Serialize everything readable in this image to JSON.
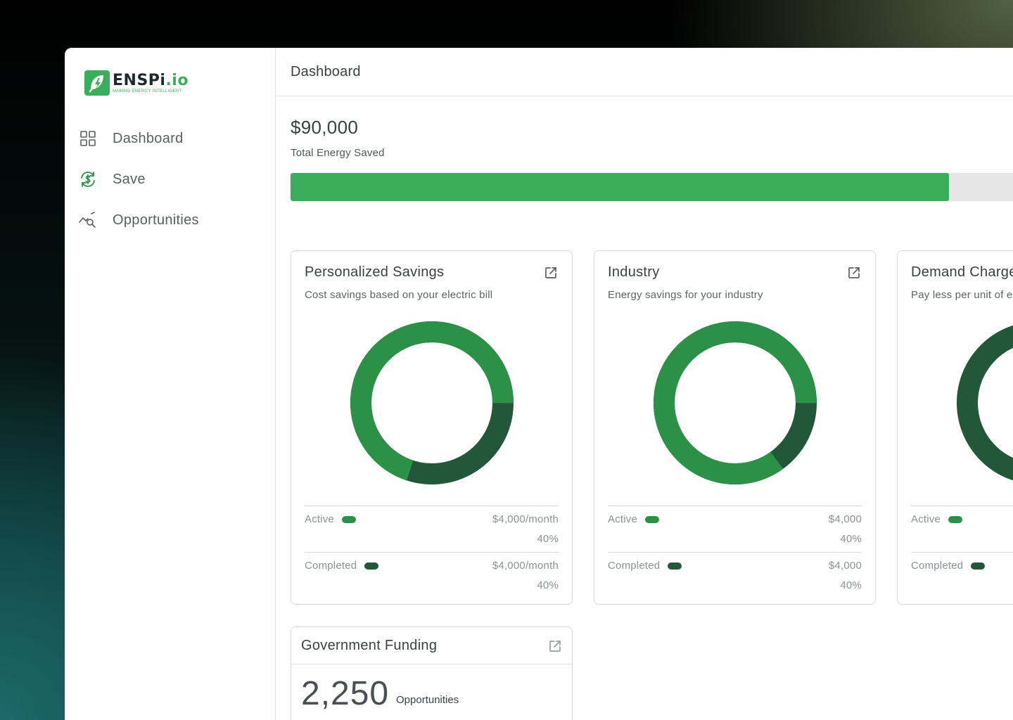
{
  "app": {
    "logo_word_a": "ENSPi",
    "logo_word_b": ".io",
    "logo_tagline": "MAKING ENERGY INTELLIGENT"
  },
  "sidebar": {
    "items": [
      {
        "label": "Dashboard",
        "icon": "grid-icon"
      },
      {
        "label": "Save",
        "icon": "dollar-refresh-icon"
      },
      {
        "label": "Opportunities",
        "icon": "chart-search-icon"
      }
    ]
  },
  "header": {
    "title": "Dashboard"
  },
  "summary": {
    "value": "$90,000",
    "label": "Total Energy Saved",
    "progress_fraction": 0.9
  },
  "colors": {
    "brand_green": "#3aae5a",
    "active_green": "#2b9147",
    "completed_green": "#22573a",
    "track_gray": "#e6e6e6"
  },
  "cards": [
    {
      "title": "Personalized Savings",
      "subtitle": "Cost savings based on your electric bill",
      "active_fraction": 0.7,
      "rows": [
        {
          "label": "Active",
          "value": "$4,000/month",
          "pct": "40%"
        },
        {
          "label": "Completed",
          "value": "$4,000/month",
          "pct": "40%"
        }
      ]
    },
    {
      "title": "Industry",
      "subtitle": "Energy savings for your industry",
      "active_fraction": 0.85,
      "rows": [
        {
          "label": "Active",
          "value": "$4,000",
          "pct": "40%"
        },
        {
          "label": "Completed",
          "value": "$4,000",
          "pct": "40%"
        }
      ]
    },
    {
      "title": "Demand Charge",
      "subtitle": "Pay less per unit of energy",
      "active_fraction": 0.0,
      "rows": [
        {
          "label": "Active",
          "value": "",
          "pct": ""
        },
        {
          "label": "Completed",
          "value": "",
          "pct": ""
        }
      ]
    }
  ],
  "funding": {
    "title": "Government Funding",
    "count": "2,250",
    "label": "Opportunities"
  }
}
